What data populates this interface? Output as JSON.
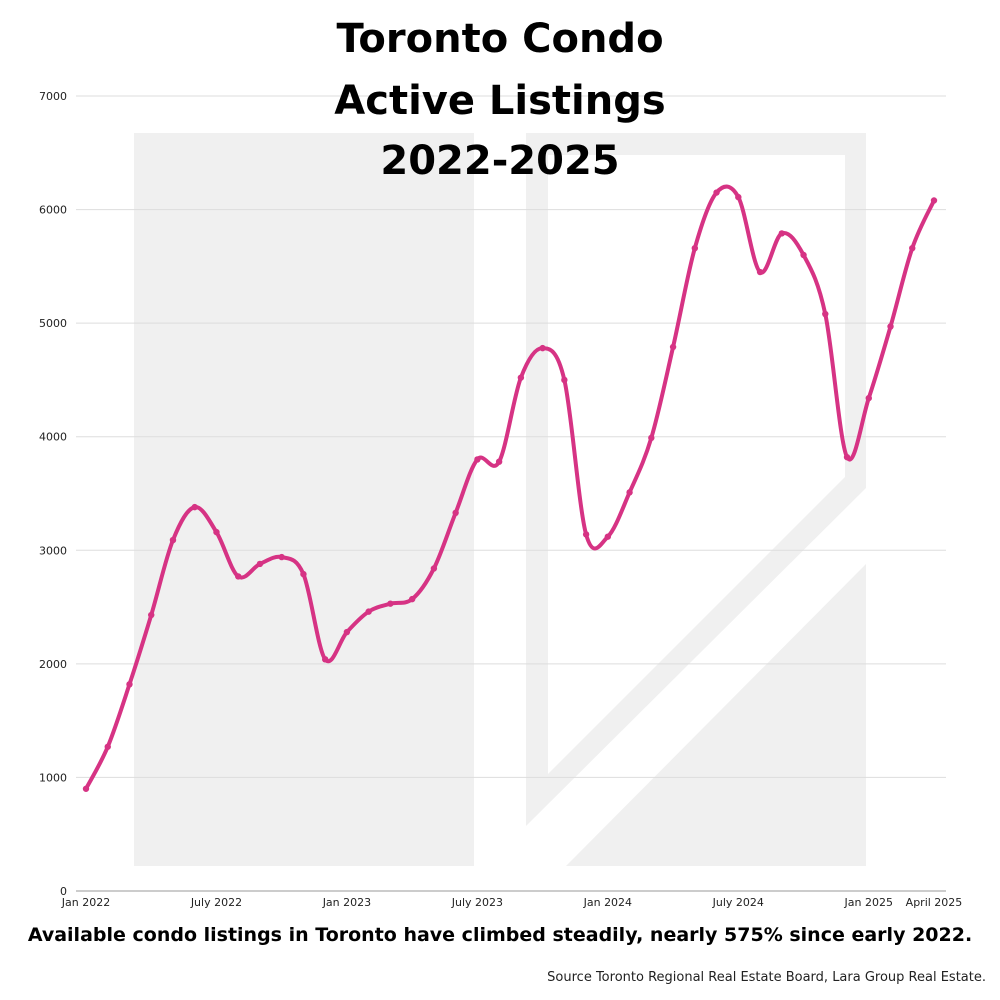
{
  "chart_data": {
    "type": "line",
    "title_lines": [
      "Toronto Condo",
      "Active Listings",
      "2022-2025"
    ],
    "caption": "Available condo listings in Toronto have climbed steadily, nearly 575% since early 2022.",
    "source": "Source Toronto Regional Real Estate Board, Lara Group Real Estate.",
    "x_tick_labels": [
      "Jan 2022",
      "July 2022",
      "Jan 2023",
      "July 2023",
      "Jan 2024",
      "July 2024",
      "Jan 2025",
      "April 2025"
    ],
    "x_tick_months": [
      0,
      6,
      12,
      18,
      24,
      30,
      36,
      39
    ],
    "y_ticks": [
      0,
      1000,
      2000,
      3000,
      4000,
      5000,
      6000,
      7000
    ],
    "ylim": [
      0,
      7000
    ],
    "grid": true,
    "line_color": "#d63384",
    "series": [
      {
        "x": [
          "2022-01",
          "2022-02",
          "2022-03",
          "2022-04",
          "2022-05",
          "2022-06",
          "2022-07",
          "2022-08",
          "2022-09",
          "2022-10",
          "2022-11",
          "2022-12",
          "2023-01",
          "2023-02",
          "2023-03",
          "2023-04",
          "2023-05",
          "2023-06",
          "2023-07",
          "2023-08",
          "2023-09",
          "2023-10",
          "2023-11",
          "2023-12",
          "2024-01",
          "2024-02",
          "2024-03",
          "2024-04",
          "2024-05",
          "2024-06",
          "2024-07",
          "2024-08",
          "2024-09",
          "2024-10",
          "2024-11",
          "2024-12",
          "2025-01",
          "2025-02",
          "2025-03",
          "2025-04"
        ],
        "values": [
          900,
          1270,
          1820,
          2430,
          3090,
          3380,
          3160,
          2770,
          2880,
          2940,
          2790,
          2040,
          2280,
          2460,
          2530,
          2570,
          2840,
          3330,
          3800,
          3780,
          4520,
          4780,
          4500,
          3140,
          3120,
          3510,
          3990,
          4790,
          5660,
          6150,
          6110,
          5450,
          5790,
          5600,
          5080,
          3820,
          4340,
          4970,
          5660,
          6080
        ]
      }
    ]
  }
}
